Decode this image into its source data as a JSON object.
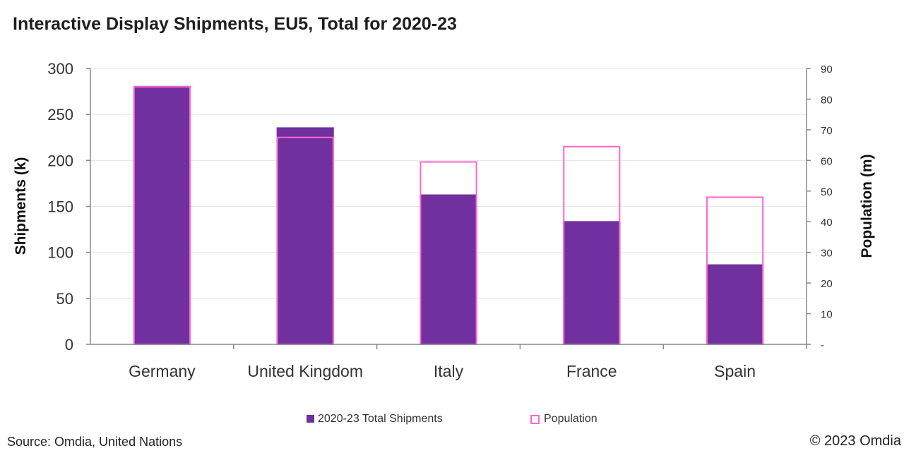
{
  "chart_data": {
    "type": "bar",
    "title": "Interactive Display Shipments, EU5, Total for 2020-23",
    "categories": [
      "Germany",
      "United Kingdom",
      "Italy",
      "France",
      "Spain"
    ],
    "series": [
      {
        "name": "2020-23 Total Shipments",
        "axis": "left",
        "style": "filled",
        "color": "#7030a0",
        "values": [
          281,
          236,
          163,
          134,
          87
        ]
      },
      {
        "name": "Population",
        "axis": "right",
        "style": "outline",
        "color": "#ff66cc",
        "values": [
          84,
          67.5,
          59.5,
          64.5,
          48
        ]
      }
    ],
    "ylabel": "Shipments (k)",
    "ylabel_right": "Population (m)",
    "ylim": [
      0,
      300
    ],
    "ylim_right": [
      0,
      90
    ],
    "yticks": [
      "0",
      "50",
      "100",
      "150",
      "200",
      "250",
      "300"
    ],
    "yticks_right": [
      "-",
      "10",
      "20",
      "30",
      "40",
      "50",
      "60",
      "70",
      "80",
      "90"
    ],
    "grid": true,
    "legend_position": "bottom"
  },
  "footer": {
    "source": "Source: Omdia, United Nations",
    "copyright": "© 2023 Omdia"
  }
}
